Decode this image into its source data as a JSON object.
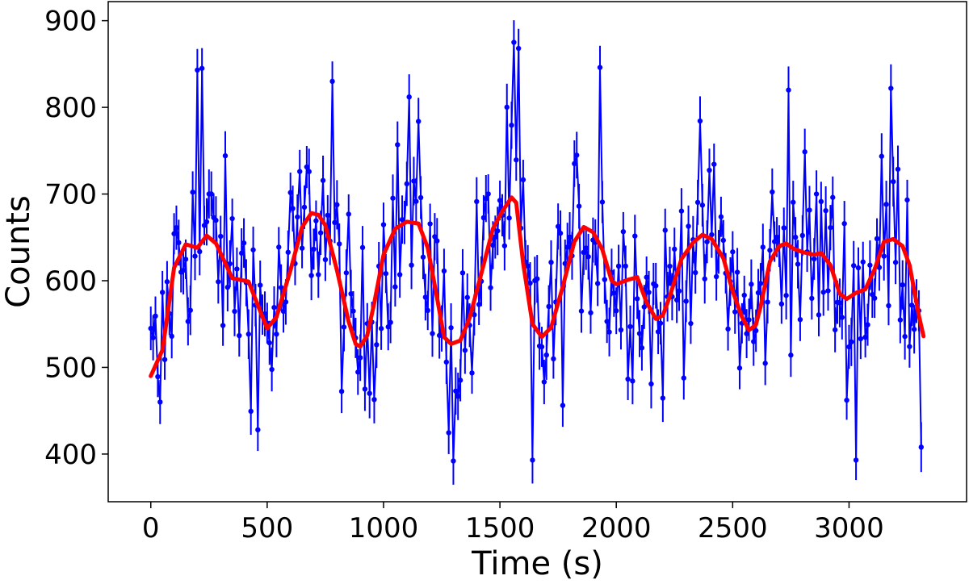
{
  "chart_data": {
    "type": "line",
    "title": "",
    "xlabel": "Time (s)",
    "ylabel": "Counts",
    "xlim": [
      -183,
      3505
    ],
    "ylim": [
      345,
      922
    ],
    "x_ticks": [
      0,
      500,
      1000,
      1500,
      2000,
      2500,
      3000
    ],
    "x_tick_labels": [
      "0",
      "500",
      "1000",
      "1500",
      "2000",
      "2500",
      "3000"
    ],
    "y_ticks": [
      400,
      500,
      600,
      700,
      800,
      900
    ],
    "y_tick_labels": [
      "400",
      "500",
      "600",
      "700",
      "800",
      "900"
    ],
    "grid": false,
    "legend": "none",
    "series": [
      {
        "style": "errorbar-markers",
        "color": "#0000ff",
        "x_start": 0,
        "x_step": 10,
        "n_points": 332,
        "typical_error": 25,
        "approx_range": [
          385,
          875
        ],
        "highlight_points": [
          {
            "x": 200,
            "y": 843
          },
          {
            "x": 220,
            "y": 845
          },
          {
            "x": 780,
            "y": 830
          },
          {
            "x": 1110,
            "y": 812
          },
          {
            "x": 1560,
            "y": 875
          },
          {
            "x": 1580,
            "y": 868
          },
          {
            "x": 1640,
            "y": 393
          },
          {
            "x": 1930,
            "y": 846
          },
          {
            "x": 2740,
            "y": 820
          },
          {
            "x": 3180,
            "y": 822
          },
          {
            "x": 1300,
            "y": 392
          },
          {
            "x": 3030,
            "y": 393
          },
          {
            "x": 3310,
            "y": 408
          },
          {
            "x": 40,
            "y": 460
          },
          {
            "x": 460,
            "y": 428
          }
        ]
      },
      {
        "style": "line",
        "color": "#ff0000",
        "x": [
          0,
          50,
          100,
          150,
          200,
          240,
          280,
          350,
          420,
          480,
          500,
          540,
          600,
          650,
          690,
          720,
          750,
          800,
          850,
          880,
          900,
          930,
          960,
          1000,
          1050,
          1100,
          1150,
          1190,
          1230,
          1260,
          1290,
          1300,
          1330,
          1370,
          1420,
          1470,
          1510,
          1550,
          1570,
          1600,
          1640,
          1680,
          1720,
          1770,
          1820,
          1860,
          1900,
          1940,
          1980,
          2000,
          2050,
          2090,
          2130,
          2170,
          2200,
          2230,
          2280,
          2330,
          2370,
          2410,
          2460,
          2500,
          2540,
          2570,
          2600,
          2620,
          2660,
          2700,
          2730,
          2760,
          2800,
          2850,
          2880,
          2920,
          2960,
          2990,
          3030,
          3070,
          3110,
          3150,
          3190,
          3230,
          3260,
          3300,
          3320
        ],
        "y": [
          490,
          520,
          615,
          642,
          638,
          652,
          643,
          603,
          599,
          558,
          545,
          558,
          612,
          662,
          678,
          676,
          664,
          612,
          553,
          527,
          524,
          537,
          574,
          630,
          660,
          668,
          666,
          638,
          580,
          535,
          527,
          528,
          531,
          557,
          608,
          660,
          680,
          696,
          690,
          620,
          550,
          535,
          546,
          593,
          645,
          662,
          656,
          636,
          600,
          596,
          601,
          604,
          575,
          556,
          560,
          582,
          625,
          644,
          653,
          648,
          626,
          588,
          558,
          543,
          549,
          570,
          622,
          640,
          643,
          637,
          633,
          630,
          632,
          618,
          585,
          579,
          586,
          590,
          613,
          645,
          648,
          640,
          618,
          560,
          536
        ]
      }
    ]
  }
}
